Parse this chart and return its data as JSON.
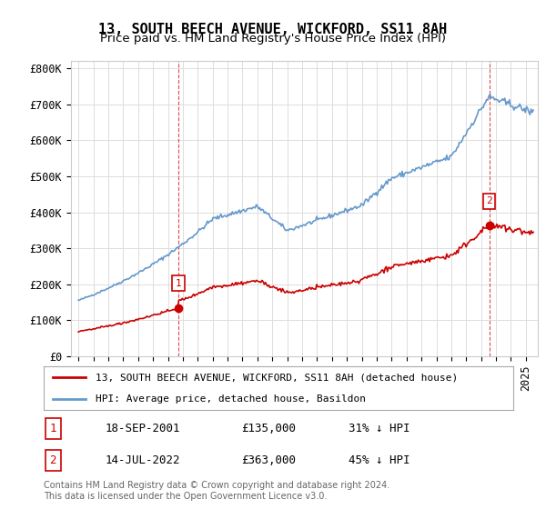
{
  "title": "13, SOUTH BEECH AVENUE, WICKFORD, SS11 8AH",
  "subtitle": "Price paid vs. HM Land Registry's House Price Index (HPI)",
  "ylim": [
    0,
    820000
  ],
  "yticks": [
    0,
    100000,
    200000,
    300000,
    400000,
    500000,
    600000,
    700000,
    800000
  ],
  "ytick_labels": [
    "£0",
    "£100K",
    "£200K",
    "£300K",
    "£400K",
    "£500K",
    "£600K",
    "£700K",
    "£800K"
  ],
  "hpi_color": "#6699cc",
  "sale_color": "#cc0000",
  "legend_line1": "13, SOUTH BEECH AVENUE, WICKFORD, SS11 8AH (detached house)",
  "legend_line2": "HPI: Average price, detached house, Basildon",
  "ann1_date": "18-SEP-2001",
  "ann1_price": "£135,000",
  "ann1_hpi": "31% ↓ HPI",
  "ann2_date": "14-JUL-2022",
  "ann2_price": "£363,000",
  "ann2_hpi": "45% ↓ HPI",
  "footer": "Contains HM Land Registry data © Crown copyright and database right 2024.\nThis data is licensed under the Open Government Licence v3.0.",
  "bg_color": "#ffffff",
  "grid_color": "#dddddd",
  "title_fontsize": 11,
  "subtitle_fontsize": 9.5,
  "tick_fontsize": 8.5
}
